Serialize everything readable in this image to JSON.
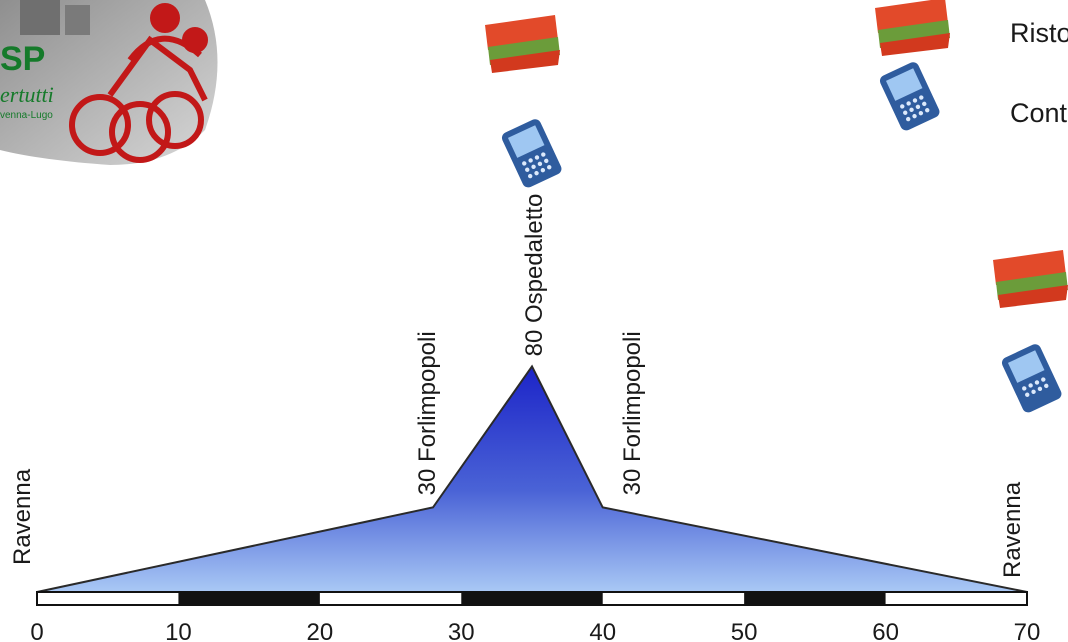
{
  "logo": {
    "brand": "SP",
    "tagline": "ertutti",
    "place": "venna-Lugo"
  },
  "legend": [
    {
      "icon": "food-box-icon",
      "label": "Risto"
    },
    {
      "icon": "mobile-phone-icon",
      "label": "Cont"
    }
  ],
  "chart_data": {
    "type": "area",
    "x_unit": "km",
    "xlim": [
      0,
      70
    ],
    "x_ticks": [
      0,
      10,
      20,
      30,
      40,
      50,
      60,
      70
    ],
    "profile": [
      {
        "km": 0,
        "alt": 0,
        "label": "Ravenna"
      },
      {
        "km": 28,
        "alt": 30,
        "label": "30 Forlimpopoli"
      },
      {
        "km": 35,
        "alt": 80,
        "label": "80 Ospedaletto"
      },
      {
        "km": 40,
        "alt": 30,
        "label": "30 Forlimpopoli"
      },
      {
        "km": 70,
        "alt": 0,
        "label": "Ravenna"
      }
    ],
    "ylim": [
      0,
      100
    ],
    "fill_top": "#1c24c8",
    "fill_bottom": "#a9c8f5"
  },
  "map_icons": [
    {
      "icon": "food-box-icon"
    },
    {
      "icon": "mobile-phone-icon"
    },
    {
      "icon": "food-box-icon"
    },
    {
      "icon": "mobile-phone-icon"
    }
  ]
}
